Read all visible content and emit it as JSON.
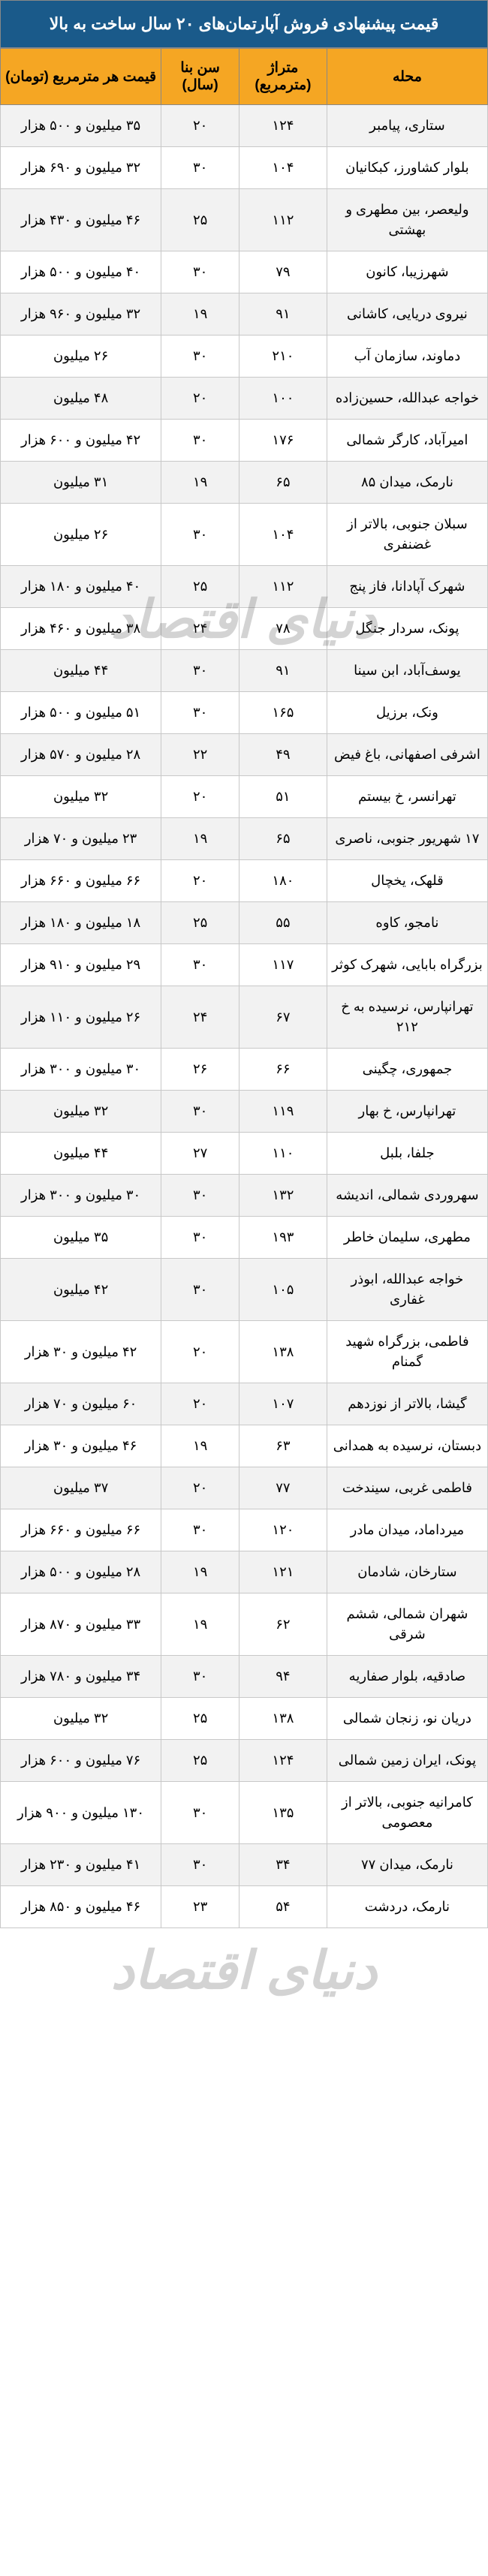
{
  "title": "قیمت پیشنهادی فروش آپارتمان‌های ۲۰ سال ساخت به بالا",
  "watermark_text": "دنیای اقتصاد",
  "columns": {
    "neighborhood": "محله",
    "area": "متراژ (مترمربع)",
    "age": "سن بنا (سال)",
    "price": "قیمت هر مترمربع (تومان)"
  },
  "rows": [
    {
      "neighborhood": "ستاری، پیامبر",
      "area": "۱۲۴",
      "age": "۲۰",
      "price": "۳۵ میلیون و ۵۰۰ هزار"
    },
    {
      "neighborhood": "بلوار کشاورز، کبکانیان",
      "area": "۱۰۴",
      "age": "۳۰",
      "price": "۳۲ میلیون و ۶۹۰ هزار"
    },
    {
      "neighborhood": "ولیعصر، بین مطهری و بهشتی",
      "area": "۱۱۲",
      "age": "۲۵",
      "price": "۴۶ میلیون و ۴۳۰ هزار"
    },
    {
      "neighborhood": "شهرزیبا، کانون",
      "area": "۷۹",
      "age": "۳۰",
      "price": "۴۰ میلیون و ۵۰۰ هزار"
    },
    {
      "neighborhood": "نیروی دریایی، کاشانی",
      "area": "۹۱",
      "age": "۱۹",
      "price": "۳۲ میلیون و ۹۶۰ هزار"
    },
    {
      "neighborhood": "دماوند، سازمان آب",
      "area": "۲۱۰",
      "age": "۳۰",
      "price": "۲۶ میلیون"
    },
    {
      "neighborhood": "خواجه عبدالله، حسین‌زاده",
      "area": "۱۰۰",
      "age": "۲۰",
      "price": "۴۸ میلیون"
    },
    {
      "neighborhood": "امیرآباد، کارگر شمالی",
      "area": "۱۷۶",
      "age": "۳۰",
      "price": "۴۲ میلیون و ۶۰۰ هزار"
    },
    {
      "neighborhood": "نارمک، میدان ۸۵",
      "area": "۶۵",
      "age": "۱۹",
      "price": "۳۱ میلیون"
    },
    {
      "neighborhood": "سبلان جنوبی، بالاتر از غضنفری",
      "area": "۱۰۴",
      "age": "۳۰",
      "price": "۲۶ میلیون"
    },
    {
      "neighborhood": "شهرک آپادانا، فاز پنج",
      "area": "۱۱۲",
      "age": "۲۵",
      "price": "۴۰ میلیون و ۱۸۰ هزار"
    },
    {
      "neighborhood": "پونک، سردار جنگل",
      "area": "۷۸",
      "age": "۲۴",
      "price": "۳۸ میلیون و ۴۶۰ هزار"
    },
    {
      "neighborhood": "یوسف‌آباد، ابن سینا",
      "area": "۹۱",
      "age": "۳۰",
      "price": "۴۴ میلیون"
    },
    {
      "neighborhood": "ونک، برزیل",
      "area": "۱۶۵",
      "age": "۳۰",
      "price": "۵۱ میلیون و ۵۰۰ هزار"
    },
    {
      "neighborhood": "اشرفی اصفهانی، باغ فیض",
      "area": "۴۹",
      "age": "۲۲",
      "price": "۲۸ میلیون و ۵۷۰ هزار"
    },
    {
      "neighborhood": "تهرانسر، خ بیستم",
      "area": "۵۱",
      "age": "۲۰",
      "price": "۳۲ میلیون"
    },
    {
      "neighborhood": "۱۷ شهریور جنوبی، ناصری",
      "area": "۶۵",
      "age": "۱۹",
      "price": "۲۳ میلیون و ۷۰ هزار"
    },
    {
      "neighborhood": "قلهک، یخچال",
      "area": "۱۸۰",
      "age": "۲۰",
      "price": "۶۶ میلیون و ۶۶۰ هزار"
    },
    {
      "neighborhood": "نامجو، کاوه",
      "area": "۵۵",
      "age": "۲۵",
      "price": "۱۸ میلیون و ۱۸۰ هزار"
    },
    {
      "neighborhood": "بزرگراه بابایی، شهرک کوثر",
      "area": "۱۱۷",
      "age": "۳۰",
      "price": "۲۹ میلیون و ۹۱۰ هزار"
    },
    {
      "neighborhood": "تهرانپارس، نرسیده به خ ۲۱۲",
      "area": "۶۷",
      "age": "۲۴",
      "price": "۲۶ میلیون و ۱۱۰ هزار"
    },
    {
      "neighborhood": "جمهوری، چگینی",
      "area": "۶۶",
      "age": "۲۶",
      "price": "۳۰ میلیون و ۳۰۰ هزار"
    },
    {
      "neighborhood": "تهرانپارس، خ بهار",
      "area": "۱۱۹",
      "age": "۳۰",
      "price": "۳۲ میلیون"
    },
    {
      "neighborhood": "جلفا، بلبل",
      "area": "۱۱۰",
      "age": "۲۷",
      "price": "۴۴ میلیون"
    },
    {
      "neighborhood": "سهروردی شمالی، اندیشه",
      "area": "۱۳۲",
      "age": "۳۰",
      "price": "۳۰ میلیون و ۳۰۰ هزار"
    },
    {
      "neighborhood": "مطهری، سلیمان خاطر",
      "area": "۱۹۳",
      "age": "۳۰",
      "price": "۳۵ میلیون"
    },
    {
      "neighborhood": "خواجه عبدالله، ابوذر غفاری",
      "area": "۱۰۵",
      "age": "۳۰",
      "price": "۴۲ میلیون"
    },
    {
      "neighborhood": "فاطمی، بزرگراه شهید گمنام",
      "area": "۱۳۸",
      "age": "۲۰",
      "price": "۴۲ میلیون و ۳۰ هزار"
    },
    {
      "neighborhood": "گیشا، بالاتر از نوزدهم",
      "area": "۱۰۷",
      "age": "۲۰",
      "price": "۶۰ میلیون و ۷۰ هزار"
    },
    {
      "neighborhood": "دبستان، نرسیده به همدانی",
      "area": "۶۳",
      "age": "۱۹",
      "price": "۴۶ میلیون و ۳۰ هزار"
    },
    {
      "neighborhood": "فاطمی غربی، سیندخت",
      "area": "۷۷",
      "age": "۲۰",
      "price": "۳۷ میلیون"
    },
    {
      "neighborhood": "میرداماد، میدان مادر",
      "area": "۱۲۰",
      "age": "۳۰",
      "price": "۶۶ میلیون و ۶۶۰ هزار"
    },
    {
      "neighborhood": "ستارخان، شادمان",
      "area": "۱۲۱",
      "age": "۱۹",
      "price": "۲۸ میلیون و ۵۰۰ هزار"
    },
    {
      "neighborhood": "شهران شمالی، ششم شرقی",
      "area": "۶۲",
      "age": "۱۹",
      "price": "۳۳ میلیون و ۸۷۰ هزار"
    },
    {
      "neighborhood": "صادقیه، بلوار صفاریه",
      "area": "۹۴",
      "age": "۳۰",
      "price": "۳۴ میلیون و ۷۸۰ هزار"
    },
    {
      "neighborhood": "دریان نو، زنجان شمالی",
      "area": "۱۳۸",
      "age": "۲۵",
      "price": "۳۲ میلیون"
    },
    {
      "neighborhood": "پونک، ایران زمین شمالی",
      "area": "۱۲۴",
      "age": "۲۵",
      "price": "۷۶ میلیون و ۶۰۰ هزار"
    },
    {
      "neighborhood": "کامرانیه جنوبی، بالاتر از معصومی",
      "area": "۱۳۵",
      "age": "۳۰",
      "price": "۱۳۰ میلیون و ۹۰۰ هزار"
    },
    {
      "neighborhood": "نارمک، میدان ۷۷",
      "area": "۳۴",
      "age": "۳۰",
      "price": "۴۱ میلیون و ۲۳۰ هزار"
    },
    {
      "neighborhood": "نارمک، دردشت",
      "area": "۵۴",
      "age": "۲۳",
      "price": "۴۶ میلیون و ۸۵۰ هزار"
    }
  ],
  "style": {
    "title_bg": "#1a5a8a",
    "title_color": "#ffffff",
    "header_bg": "#f5a623",
    "header_color": "#000000",
    "row_odd_bg": "#f2f2f2",
    "row_even_bg": "#ffffff",
    "border_color": "#c8c8c8",
    "font_family": "Tahoma",
    "title_fontsize": 22,
    "header_fontsize": 19,
    "cell_fontsize": 18
  }
}
